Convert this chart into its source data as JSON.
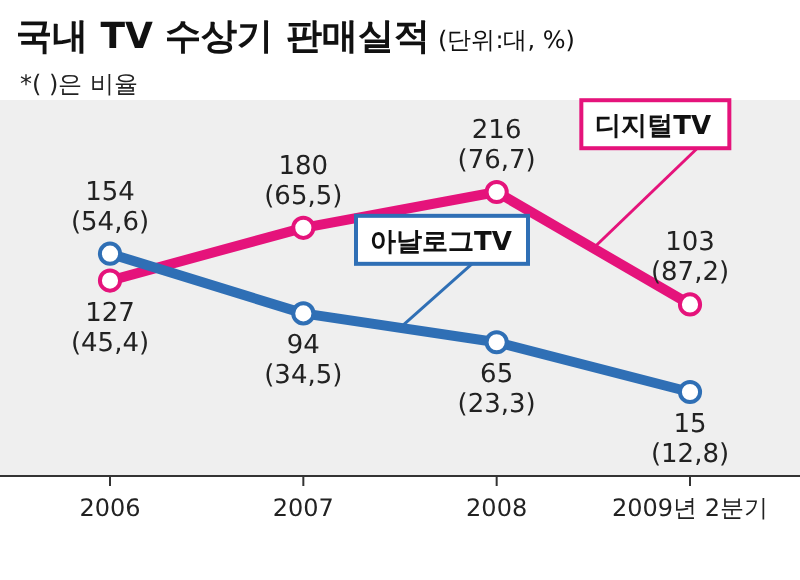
{
  "chart_data": {
    "type": "line",
    "title": "국내 TV 수상기 판매실적",
    "subtitle": "(단위:대, %)",
    "annotations": [
      "*( )은 비율"
    ],
    "categories": [
      "2006",
      "2007",
      "2008",
      "2009년 2분기"
    ],
    "marker": "circle",
    "series": [
      {
        "name": "디지털TV",
        "color": "#e5137b",
        "values": [
          127,
          180,
          216,
          103
        ],
        "value_labels": [
          "127\n(45,4)",
          "180\n(65,5)",
          "216\n(76,7)",
          "103\n(87,2)"
        ]
      },
      {
        "name": "아날로그TV",
        "color": "#2f6fb5",
        "values": [
          154,
          94,
          65,
          15
        ],
        "value_labels": [
          "154\n(54,6)",
          "94\n(34,5)",
          "65\n(23,3)",
          "15\n(12,8)"
        ]
      }
    ]
  }
}
